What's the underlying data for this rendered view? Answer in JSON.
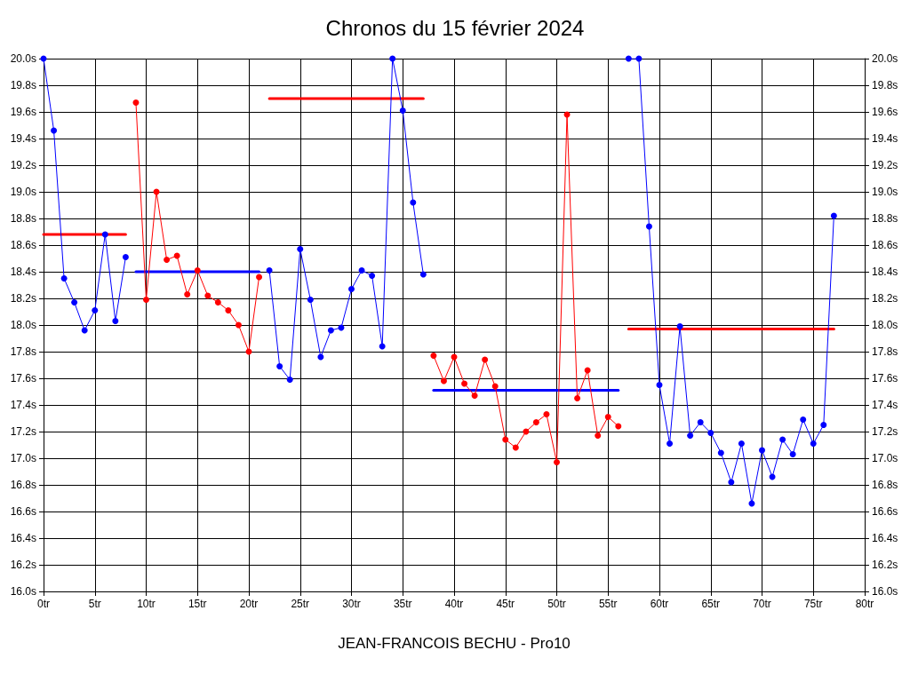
{
  "chart_data": {
    "type": "line",
    "title": "Chronos du 15 février 2024",
    "xlabel": "JEAN-FRANCOIS BECHU - Pro10",
    "xlim": [
      0,
      80
    ],
    "xticks": [
      {
        "value": 0,
        "label": "0tr"
      },
      {
        "value": 5,
        "label": "5tr"
      },
      {
        "value": 10,
        "label": "10tr"
      },
      {
        "value": 15,
        "label": "15tr"
      },
      {
        "value": 20,
        "label": "20tr"
      },
      {
        "value": 25,
        "label": "25tr"
      },
      {
        "value": 30,
        "label": "30tr"
      },
      {
        "value": 35,
        "label": "35tr"
      },
      {
        "value": 40,
        "label": "40tr"
      },
      {
        "value": 45,
        "label": "45tr"
      },
      {
        "value": 50,
        "label": "50tr"
      },
      {
        "value": 55,
        "label": "55tr"
      },
      {
        "value": 60,
        "label": "60tr"
      },
      {
        "value": 65,
        "label": "65tr"
      },
      {
        "value": 70,
        "label": "70tr"
      },
      {
        "value": 75,
        "label": "75tr"
      },
      {
        "value": 80,
        "label": "80tr"
      }
    ],
    "ylim": [
      16,
      20
    ],
    "yticks": [
      {
        "value": 16,
        "label": "16.0s"
      },
      {
        "value": 16.2,
        "label": "16.2s"
      },
      {
        "value": 16.4,
        "label": "16.4s"
      },
      {
        "value": 16.6,
        "label": "16.6s"
      },
      {
        "value": 16.8,
        "label": "16.8s"
      },
      {
        "value": 17,
        "label": "17.0s"
      },
      {
        "value": 17.2,
        "label": "17.2s"
      },
      {
        "value": 17.4,
        "label": "17.4s"
      },
      {
        "value": 17.6,
        "label": "17.6s"
      },
      {
        "value": 17.8,
        "label": "17.8s"
      },
      {
        "value": 18,
        "label": "18.0s"
      },
      {
        "value": 18.2,
        "label": "18.2s"
      },
      {
        "value": 18.4,
        "label": "18.4s"
      },
      {
        "value": 18.6,
        "label": "18.6s"
      },
      {
        "value": 18.8,
        "label": "18.8s"
      },
      {
        "value": 19,
        "label": "19.0s"
      },
      {
        "value": 19.2,
        "label": "19.2s"
      },
      {
        "value": 19.4,
        "label": "19.4s"
      },
      {
        "value": 19.6,
        "label": "19.6s"
      },
      {
        "value": 19.8,
        "label": "19.8s"
      },
      {
        "value": 20,
        "label": "20.0s"
      }
    ],
    "y2lim": [
      16,
      20
    ],
    "y2ticks": [
      {
        "value": 16,
        "label": "16.0s"
      },
      {
        "value": 16.2,
        "label": "16.2s"
      },
      {
        "value": 16.4,
        "label": "16.4s"
      },
      {
        "value": 16.6,
        "label": "16.6s"
      },
      {
        "value": 16.8,
        "label": "16.8s"
      },
      {
        "value": 17,
        "label": "17.0s"
      },
      {
        "value": 17.2,
        "label": "17.2s"
      },
      {
        "value": 17.4,
        "label": "17.4s"
      },
      {
        "value": 17.6,
        "label": "17.6s"
      },
      {
        "value": 17.8,
        "label": "17.8s"
      },
      {
        "value": 18,
        "label": "18.0s"
      },
      {
        "value": 18.2,
        "label": "18.2s"
      },
      {
        "value": 18.4,
        "label": "18.4s"
      },
      {
        "value": 18.6,
        "label": "18.6s"
      },
      {
        "value": 18.8,
        "label": "18.8s"
      },
      {
        "value": 19,
        "label": "19.0s"
      },
      {
        "value": 19.2,
        "label": "19.2s"
      },
      {
        "value": 19.4,
        "label": "19.4s"
      },
      {
        "value": 19.6,
        "label": "19.6s"
      },
      {
        "value": 19.8,
        "label": "19.8s"
      },
      {
        "value": 20,
        "label": "20.0s"
      }
    ],
    "grid": true,
    "marker": "circle",
    "line_style": "solid",
    "series": [
      {
        "color": "#0000ff",
        "x": [
          0,
          1,
          2,
          3,
          4,
          5,
          6,
          7,
          8
        ],
        "values": [
          20.0,
          19.46,
          18.35,
          18.17,
          17.96,
          18.11,
          18.68,
          18.03,
          18.51
        ]
      },
      {
        "color": "#ff0000",
        "x": [
          9,
          10,
          11,
          12,
          13,
          14,
          15,
          16,
          17,
          18,
          19,
          20,
          21
        ],
        "values": [
          19.67,
          18.19,
          19.0,
          18.49,
          18.52,
          18.23,
          18.41,
          18.22,
          18.17,
          18.11,
          18.0,
          17.8,
          18.36
        ]
      },
      {
        "color": "#0000ff",
        "x": [
          22,
          23,
          24,
          25,
          26,
          27,
          28,
          29,
          30,
          31,
          32,
          33,
          34,
          35,
          36,
          37
        ],
        "values": [
          18.41,
          17.69,
          17.59,
          18.57,
          18.19,
          17.76,
          17.96,
          17.98,
          18.27,
          18.41,
          18.37,
          17.84,
          20.0,
          19.61,
          18.92,
          18.38
        ]
      },
      {
        "color": "#ff0000",
        "x": [
          38,
          39,
          40,
          41,
          42,
          43,
          44,
          45,
          46,
          47,
          48,
          49,
          50,
          51,
          52,
          53,
          54,
          55,
          56
        ],
        "values": [
          17.77,
          17.58,
          17.76,
          17.56,
          17.47,
          17.74,
          17.54,
          17.14,
          17.08,
          17.2,
          17.27,
          17.33,
          16.97,
          19.58,
          17.45,
          17.66,
          17.17,
          17.31,
          17.24
        ]
      },
      {
        "color": "#0000ff",
        "x": [
          57,
          58,
          59,
          60,
          61,
          62,
          63,
          64,
          65,
          66,
          67,
          68,
          69,
          70,
          71,
          72,
          73,
          74,
          75,
          76,
          77
        ],
        "values": [
          20.0,
          20.0,
          18.74,
          17.55,
          17.11,
          17.99,
          17.17,
          17.27,
          17.19,
          17.04,
          16.82,
          17.11,
          16.66,
          17.06,
          16.86,
          17.14,
          17.03,
          17.29,
          17.11,
          17.25,
          18.82
        ]
      },
      {
        "color": "#ff0000",
        "marker": "none",
        "x": [
          0,
          8
        ],
        "values": [
          18.68,
          18.68
        ]
      },
      {
        "color": "#0000ff",
        "marker": "none",
        "x": [
          9,
          21
        ],
        "values": [
          18.4,
          18.4
        ]
      },
      {
        "color": "#ff0000",
        "marker": "none",
        "x": [
          22,
          37
        ],
        "values": [
          19.7,
          19.7
        ]
      },
      {
        "color": "#0000ff",
        "marker": "none",
        "x": [
          38,
          56
        ],
        "values": [
          17.51,
          17.51
        ]
      },
      {
        "color": "#ff0000",
        "marker": "none",
        "x": [
          57,
          77
        ],
        "values": [
          17.97,
          17.97
        ]
      }
    ]
  }
}
